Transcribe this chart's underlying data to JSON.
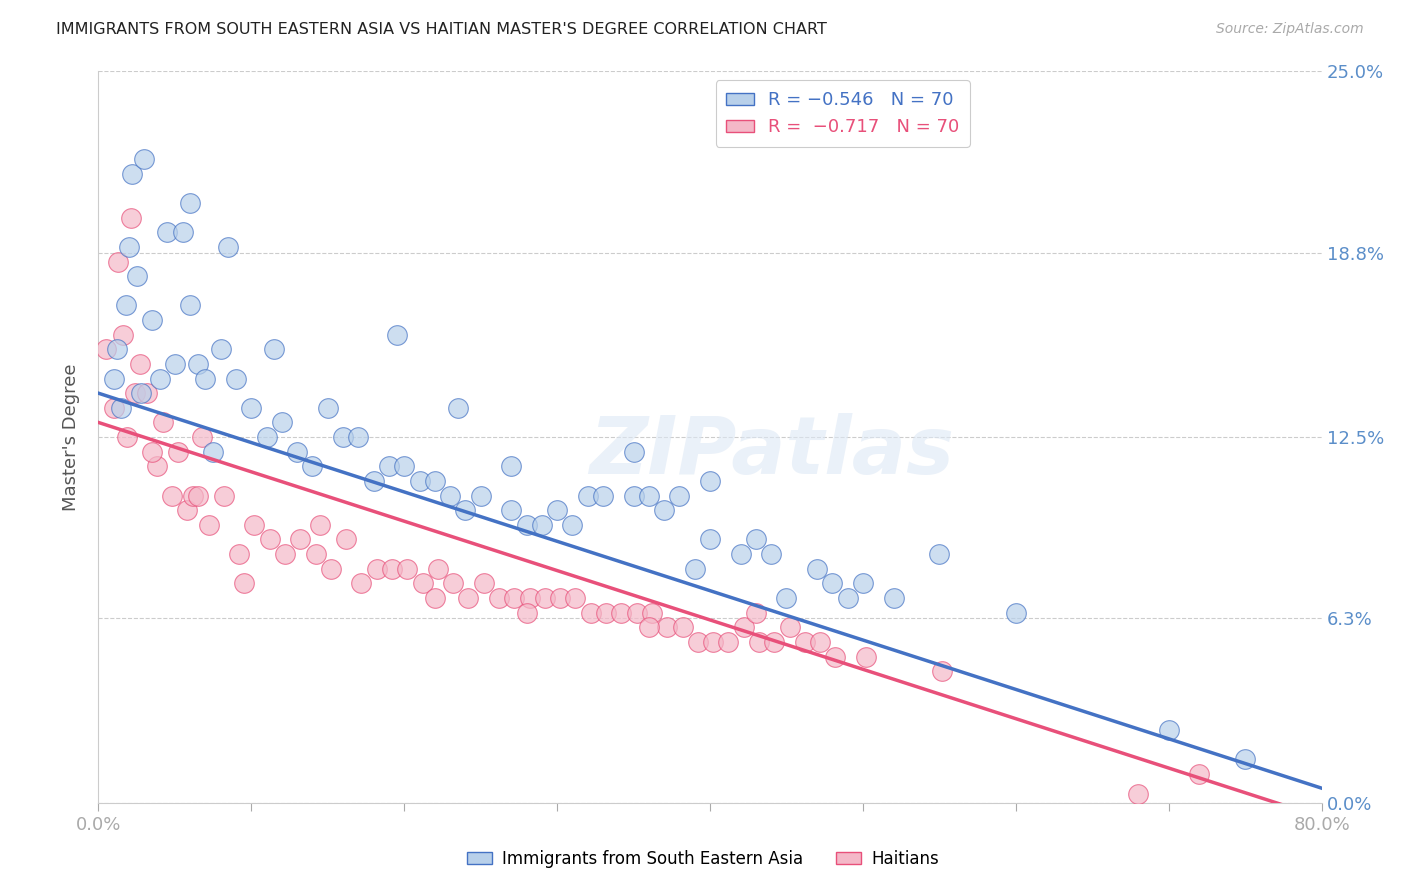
{
  "title": "IMMIGRANTS FROM SOUTH EASTERN ASIA VS HAITIAN MASTER'S DEGREE CORRELATION CHART",
  "source": "Source: ZipAtlas.com",
  "ylabel": "Master's Degree",
  "ytick_values": [
    0.0,
    6.3,
    12.5,
    18.8,
    25.0
  ],
  "xlim": [
    0.0,
    80.0
  ],
  "ylim": [
    0.0,
    25.0
  ],
  "blue_R": -0.546,
  "blue_N": 70,
  "pink_R": -0.717,
  "pink_N": 70,
  "blue_color": "#b8d0ea",
  "pink_color": "#f4b8c8",
  "blue_line_color": "#4472c4",
  "pink_line_color": "#e8507a",
  "legend_blue_label": "Immigrants from South Eastern Asia",
  "legend_pink_label": "Haitians",
  "watermark_text": "ZIPatlas",
  "title_color": "#222222",
  "axis_label_color": "#5b8ec9",
  "grid_color": "#cccccc",
  "blue_x": [
    1.0,
    1.2,
    1.5,
    1.8,
    2.0,
    2.2,
    2.5,
    2.8,
    3.0,
    3.5,
    4.0,
    4.5,
    5.0,
    5.5,
    6.0,
    6.5,
    7.0,
    7.5,
    8.0,
    9.0,
    10.0,
    11.0,
    12.0,
    13.0,
    14.0,
    15.0,
    16.0,
    17.0,
    18.0,
    19.0,
    20.0,
    21.0,
    22.0,
    23.0,
    24.0,
    25.0,
    27.0,
    28.0,
    29.0,
    30.0,
    31.0,
    32.0,
    33.0,
    35.0,
    36.0,
    37.0,
    38.0,
    39.0,
    40.0,
    42.0,
    43.0,
    44.0,
    45.0,
    47.0,
    48.0,
    49.0,
    50.0,
    52.0,
    55.0,
    60.0,
    6.0,
    8.5,
    11.5,
    19.5,
    23.5,
    27.0,
    35.0,
    40.0,
    70.0,
    75.0
  ],
  "blue_y": [
    14.5,
    15.5,
    13.5,
    17.0,
    19.0,
    21.5,
    18.0,
    14.0,
    22.0,
    16.5,
    14.5,
    19.5,
    15.0,
    19.5,
    17.0,
    15.0,
    14.5,
    12.0,
    15.5,
    14.5,
    13.5,
    12.5,
    13.0,
    12.0,
    11.5,
    13.5,
    12.5,
    12.5,
    11.0,
    11.5,
    11.5,
    11.0,
    11.0,
    10.5,
    10.0,
    10.5,
    10.0,
    9.5,
    9.5,
    10.0,
    9.5,
    10.5,
    10.5,
    10.5,
    10.5,
    10.0,
    10.5,
    8.0,
    9.0,
    8.5,
    9.0,
    8.5,
    7.0,
    8.0,
    7.5,
    7.0,
    7.5,
    7.0,
    8.5,
    6.5,
    20.5,
    19.0,
    15.5,
    16.0,
    13.5,
    11.5,
    12.0,
    11.0,
    2.5,
    1.5
  ],
  "pink_x": [
    0.5,
    1.0,
    1.3,
    1.6,
    1.9,
    2.1,
    2.4,
    2.7,
    3.2,
    3.8,
    4.2,
    4.8,
    5.2,
    5.8,
    6.2,
    6.8,
    7.2,
    8.2,
    9.2,
    10.2,
    11.2,
    12.2,
    13.2,
    14.2,
    15.2,
    16.2,
    17.2,
    18.2,
    19.2,
    20.2,
    21.2,
    22.2,
    23.2,
    24.2,
    25.2,
    26.2,
    27.2,
    28.2,
    29.2,
    30.2,
    31.2,
    32.2,
    33.2,
    34.2,
    35.2,
    36.2,
    37.2,
    38.2,
    39.2,
    40.2,
    41.2,
    42.2,
    43.2,
    44.2,
    45.2,
    46.2,
    47.2,
    48.2,
    50.2,
    55.2,
    3.5,
    6.5,
    9.5,
    14.5,
    22.0,
    28.0,
    36.0,
    43.0,
    68.0,
    72.0
  ],
  "pink_y": [
    15.5,
    13.5,
    18.5,
    16.0,
    12.5,
    20.0,
    14.0,
    15.0,
    14.0,
    11.5,
    13.0,
    10.5,
    12.0,
    10.0,
    10.5,
    12.5,
    9.5,
    10.5,
    8.5,
    9.5,
    9.0,
    8.5,
    9.0,
    8.5,
    8.0,
    9.0,
    7.5,
    8.0,
    8.0,
    8.0,
    7.5,
    8.0,
    7.5,
    7.0,
    7.5,
    7.0,
    7.0,
    7.0,
    7.0,
    7.0,
    7.0,
    6.5,
    6.5,
    6.5,
    6.5,
    6.5,
    6.0,
    6.0,
    5.5,
    5.5,
    5.5,
    6.0,
    5.5,
    5.5,
    6.0,
    5.5,
    5.5,
    5.0,
    5.0,
    4.5,
    12.0,
    10.5,
    7.5,
    9.5,
    7.0,
    6.5,
    6.0,
    6.5,
    0.3,
    1.0
  ],
  "blue_line_x0": 0.0,
  "blue_line_y0": 14.0,
  "blue_line_x1": 80.0,
  "blue_line_y1": 0.5,
  "pink_line_x0": 0.0,
  "pink_line_y0": 13.0,
  "pink_line_x1": 80.0,
  "pink_line_y1": -0.5
}
